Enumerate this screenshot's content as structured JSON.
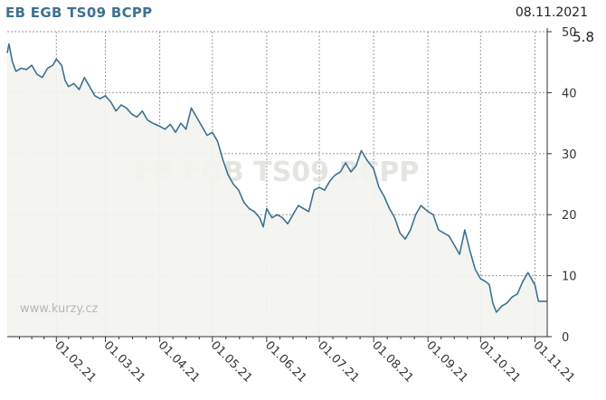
{
  "header": {
    "title": "EB EGB TS09 BCPP",
    "date": "08.11.2021",
    "last_value": "5.8"
  },
  "watermark": "EB EGB TS09 BCPP",
  "site_label": "www.kurzy.cz",
  "colors": {
    "line": "#3d7290",
    "area": "#f3f4ee",
    "grid": "#9a9a9a",
    "axis": "#333333"
  },
  "chart_data": {
    "type": "area",
    "title": "EB EGB TS09 BCPP",
    "xlabel": "",
    "ylabel": "",
    "ylim": [
      0,
      50
    ],
    "y_ticks": [
      "0",
      "10",
      "20",
      "30",
      "40",
      "50"
    ],
    "x_tick_labels": [
      "01.02.21",
      "01.03.21",
      "01.04.21",
      "01.05.21",
      "01.06.21",
      "01.07.21",
      "01.08.21",
      "01.09.21",
      "01.10.21",
      "01.11.21"
    ],
    "x_tick_dates": [
      "2021-02-01",
      "2021-03-01",
      "2021-04-01",
      "2021-05-01",
      "2021-06-01",
      "2021-07-01",
      "2021-08-01",
      "2021-09-01",
      "2021-10-01",
      "2021-11-01"
    ],
    "grid": true,
    "x_range": [
      "2021-01-04",
      "2021-11-08"
    ],
    "series": [
      {
        "values": [
          [
            "2021-01-04",
            46.5
          ],
          [
            "2021-01-05",
            48.0
          ],
          [
            "2021-01-07",
            45.0
          ],
          [
            "2021-01-09",
            43.5
          ],
          [
            "2021-01-12",
            44.0
          ],
          [
            "2021-01-15",
            43.8
          ],
          [
            "2021-01-18",
            44.5
          ],
          [
            "2021-01-21",
            43.0
          ],
          [
            "2021-01-24",
            42.5
          ],
          [
            "2021-01-27",
            44.0
          ],
          [
            "2021-01-30",
            44.5
          ],
          [
            "2021-02-01",
            45.5
          ],
          [
            "2021-02-04",
            44.5
          ],
          [
            "2021-02-06",
            42.0
          ],
          [
            "2021-02-08",
            41.0
          ],
          [
            "2021-02-11",
            41.5
          ],
          [
            "2021-02-14",
            40.5
          ],
          [
            "2021-02-17",
            42.5
          ],
          [
            "2021-02-20",
            41.0
          ],
          [
            "2021-02-23",
            39.5
          ],
          [
            "2021-02-26",
            39.0
          ],
          [
            "2021-03-01",
            39.5
          ],
          [
            "2021-03-04",
            38.5
          ],
          [
            "2021-03-07",
            37.0
          ],
          [
            "2021-03-10",
            38.0
          ],
          [
            "2021-03-13",
            37.5
          ],
          [
            "2021-03-16",
            36.5
          ],
          [
            "2021-03-19",
            36.0
          ],
          [
            "2021-03-22",
            37.0
          ],
          [
            "2021-03-25",
            35.5
          ],
          [
            "2021-03-28",
            35.0
          ],
          [
            "2021-04-01",
            34.5
          ],
          [
            "2021-04-04",
            34.0
          ],
          [
            "2021-04-07",
            34.8
          ],
          [
            "2021-04-10",
            33.5
          ],
          [
            "2021-04-13",
            35.0
          ],
          [
            "2021-04-16",
            34.0
          ],
          [
            "2021-04-19",
            37.5
          ],
          [
            "2021-04-22",
            36.0
          ],
          [
            "2021-04-25",
            34.5
          ],
          [
            "2021-04-28",
            33.0
          ],
          [
            "2021-05-01",
            33.5
          ],
          [
            "2021-05-04",
            32.0
          ],
          [
            "2021-05-07",
            29.0
          ],
          [
            "2021-05-10",
            26.5
          ],
          [
            "2021-05-13",
            25.0
          ],
          [
            "2021-05-16",
            24.0
          ],
          [
            "2021-05-19",
            22.0
          ],
          [
            "2021-05-22",
            21.0
          ],
          [
            "2021-05-25",
            20.5
          ],
          [
            "2021-05-28",
            19.5
          ],
          [
            "2021-05-30",
            18.0
          ],
          [
            "2021-06-01",
            21.0
          ],
          [
            "2021-06-04",
            19.5
          ],
          [
            "2021-06-07",
            20.0
          ],
          [
            "2021-06-10",
            19.5
          ],
          [
            "2021-06-13",
            18.5
          ],
          [
            "2021-06-16",
            20.0
          ],
          [
            "2021-06-19",
            21.5
          ],
          [
            "2021-06-22",
            21.0
          ],
          [
            "2021-06-25",
            20.5
          ],
          [
            "2021-06-28",
            24.0
          ],
          [
            "2021-07-01",
            24.5
          ],
          [
            "2021-07-04",
            24.0
          ],
          [
            "2021-07-07",
            25.5
          ],
          [
            "2021-07-10",
            26.5
          ],
          [
            "2021-07-13",
            27.0
          ],
          [
            "2021-07-16",
            28.5
          ],
          [
            "2021-07-19",
            27.0
          ],
          [
            "2021-07-22",
            28.0
          ],
          [
            "2021-07-25",
            30.5
          ],
          [
            "2021-07-28",
            29.0
          ],
          [
            "2021-08-01",
            27.5
          ],
          [
            "2021-08-04",
            24.5
          ],
          [
            "2021-08-07",
            23.0
          ],
          [
            "2021-08-10",
            21.0
          ],
          [
            "2021-08-13",
            19.5
          ],
          [
            "2021-08-16",
            17.0
          ],
          [
            "2021-08-19",
            16.0
          ],
          [
            "2021-08-22",
            17.5
          ],
          [
            "2021-08-25",
            20.0
          ],
          [
            "2021-08-28",
            21.5
          ],
          [
            "2021-09-01",
            20.5
          ],
          [
            "2021-09-04",
            20.0
          ],
          [
            "2021-09-07",
            17.5
          ],
          [
            "2021-09-10",
            17.0
          ],
          [
            "2021-09-13",
            16.5
          ],
          [
            "2021-09-16",
            15.0
          ],
          [
            "2021-09-19",
            13.5
          ],
          [
            "2021-09-22",
            17.5
          ],
          [
            "2021-09-25",
            14.0
          ],
          [
            "2021-09-28",
            11.0
          ],
          [
            "2021-10-01",
            9.5
          ],
          [
            "2021-10-04",
            9.0
          ],
          [
            "2021-10-06",
            8.5
          ],
          [
            "2021-10-08",
            5.5
          ],
          [
            "2021-10-10",
            4.0
          ],
          [
            "2021-10-13",
            5.0
          ],
          [
            "2021-10-16",
            5.5
          ],
          [
            "2021-10-19",
            6.5
          ],
          [
            "2021-10-22",
            7.0
          ],
          [
            "2021-10-25",
            9.0
          ],
          [
            "2021-10-28",
            10.5
          ],
          [
            "2021-11-01",
            8.5
          ],
          [
            "2021-11-03",
            5.8
          ],
          [
            "2021-11-08",
            5.8
          ]
        ]
      }
    ]
  }
}
